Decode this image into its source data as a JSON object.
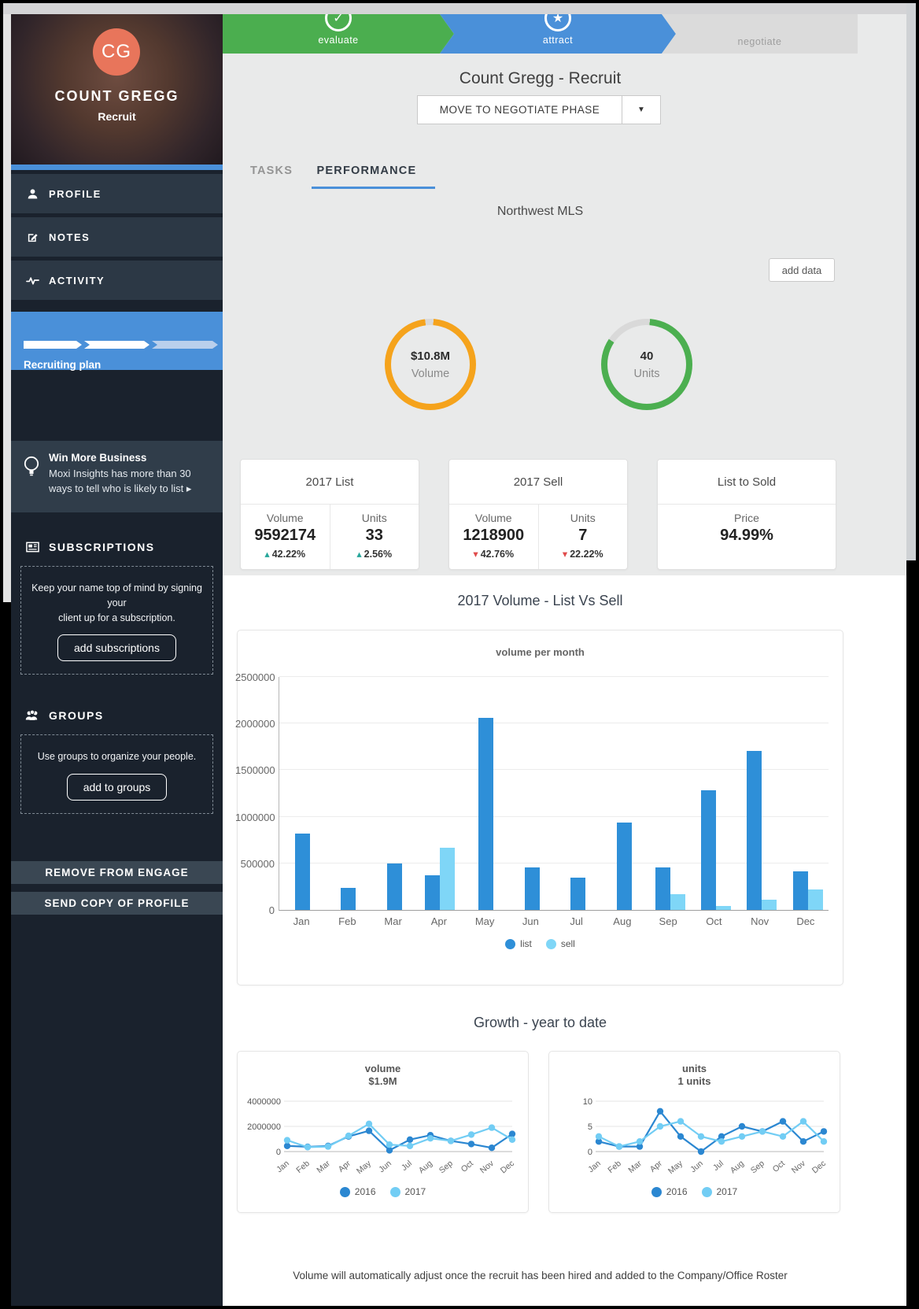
{
  "icons": {
    "check": "✓",
    "star": "★",
    "caret_down": "▼",
    "delta_up": "▴",
    "delta_down": "▾"
  },
  "colors": {
    "accent_blue": "#4A90D9",
    "phase_green": "#4BAE4F",
    "donut_track": "#d9d9d9",
    "donut_hole": "#e9eaea",
    "delta_up": "#26A69A",
    "delta_down": "#E04B4B"
  },
  "sidebar": {
    "avatar_initials": "CG",
    "name": "COUNT GREGG",
    "role": "Recruit",
    "nav": [
      {
        "label": "PROFILE",
        "icon": "user-icon"
      },
      {
        "label": "NOTES",
        "icon": "notes-icon"
      },
      {
        "label": "ACTIVITY",
        "icon": "activity-icon"
      }
    ],
    "recruiting_plan_label": "Recruiting plan",
    "tip": {
      "title": "Win More Business",
      "line1": "Moxi Insights has more than 30",
      "line2": "ways to tell who is likely to list ▸"
    },
    "subscriptions": {
      "heading": "SUBSCRIPTIONS",
      "text_line1": "Keep your name top of mind by signing your",
      "text_line2": "client up for a subscription.",
      "button": "add subscriptions"
    },
    "groups": {
      "heading": "GROUPS",
      "text": "Use groups to organize your people.",
      "button": "add to groups"
    },
    "actions": {
      "remove": "REMOVE FROM ENGAGE",
      "send": "SEND COPY OF PROFILE"
    }
  },
  "phases": [
    {
      "label": "evaluate"
    },
    {
      "label": "attract"
    },
    {
      "label": "negotiate"
    }
  ],
  "header": {
    "title": "Count Gregg - Recruit",
    "action_button": "MOVE TO NEGOTIATE PHASE"
  },
  "tabs": [
    {
      "label": "TASKS"
    },
    {
      "label": "PERFORMANCE"
    }
  ],
  "mls": {
    "title": "Northwest MLS",
    "add_data_button": "add data",
    "donuts": [
      {
        "value": "$10.8M",
        "label": "Volume",
        "color": "#F5A31C",
        "percent": 97
      },
      {
        "value": "40",
        "label": "Units",
        "color": "#4CAF50",
        "percent": 83.3
      }
    ]
  },
  "stat_cards": [
    {
      "title": "2017 List",
      "metrics": [
        {
          "label": "Volume",
          "value": "9592174",
          "delta": "42.22%",
          "direction": "up"
        },
        {
          "label": "Units",
          "value": "33",
          "delta": "2.56%",
          "direction": "up"
        }
      ]
    },
    {
      "title": "2017 Sell",
      "metrics": [
        {
          "label": "Volume",
          "value": "1218900",
          "delta": "42.76%",
          "direction": "down"
        },
        {
          "label": "Units",
          "value": "7",
          "delta": "22.22%",
          "direction": "down"
        }
      ]
    },
    {
      "title": "List to Sold",
      "metrics": [
        {
          "label": "Price",
          "value": "94.99%"
        }
      ]
    }
  ],
  "sections": {
    "volume_list_vs_sell": "2017 Volume - List Vs Sell",
    "growth": "Growth - year to date"
  },
  "chart_data": [
    {
      "type": "bar",
      "title": "volume per month",
      "categories": [
        "Jan",
        "Feb",
        "Mar",
        "Apr",
        "May",
        "Jun",
        "Jul",
        "Aug",
        "Sep",
        "Oct",
        "Nov",
        "Dec"
      ],
      "series": [
        {
          "name": "list",
          "color": "#2E8FD8",
          "values": [
            820000,
            240000,
            500000,
            375000,
            2060000,
            460000,
            350000,
            940000,
            460000,
            1280000,
            1710000,
            410000
          ]
        },
        {
          "name": "sell",
          "color": "#7FD6F7",
          "values": [
            0,
            0,
            0,
            670000,
            0,
            0,
            0,
            0,
            170000,
            40000,
            110000,
            220000
          ]
        }
      ],
      "ylim": [
        0,
        2500000
      ],
      "yticks": [
        0,
        500000,
        1000000,
        1500000,
        2000000,
        2500000
      ],
      "grid": true,
      "legend_position": "bottom"
    },
    {
      "type": "line",
      "title": "volume",
      "subtitle": "$1.9M",
      "categories": [
        "Jan",
        "Feb",
        "Mar",
        "Apr",
        "May",
        "Jun",
        "Jul",
        "Aug",
        "Sep",
        "Oct",
        "Nov",
        "Dec"
      ],
      "series": [
        {
          "name": "2016",
          "color": "#2B87D1",
          "values": [
            450000,
            380000,
            450000,
            1200000,
            1650000,
            100000,
            950000,
            1300000,
            850000,
            600000,
            300000,
            1400000
          ]
        },
        {
          "name": "2017",
          "color": "#72CDF4",
          "values": [
            900000,
            350000,
            400000,
            1250000,
            2200000,
            550000,
            450000,
            1050000,
            850000,
            1350000,
            1900000,
            950000
          ]
        }
      ],
      "ylim": [
        0,
        4000000
      ],
      "yticks": [
        0,
        2000000,
        4000000
      ],
      "grid": true,
      "legend_position": "bottom"
    },
    {
      "type": "line",
      "title": "units",
      "subtitle": "1 units",
      "categories": [
        "Jan",
        "Feb",
        "Mar",
        "Apr",
        "May",
        "Jun",
        "Jul",
        "Aug",
        "Sep",
        "Oct",
        "Nov",
        "Dec"
      ],
      "series": [
        {
          "name": "2016",
          "color": "#2B87D1",
          "values": [
            2,
            1,
            1,
            8,
            3,
            0,
            3,
            5,
            4,
            6,
            2,
            4
          ]
        },
        {
          "name": "2017",
          "color": "#72CDF4",
          "values": [
            3,
            1,
            2,
            5,
            6,
            3,
            2,
            3,
            4,
            3,
            6,
            2
          ]
        }
      ],
      "ylim": [
        0,
        10
      ],
      "yticks": [
        0,
        5,
        10
      ],
      "grid": true,
      "legend_position": "bottom"
    }
  ],
  "footer_note": "Volume will automatically adjust once the recruit has been hired and added to the Company/Office Roster"
}
